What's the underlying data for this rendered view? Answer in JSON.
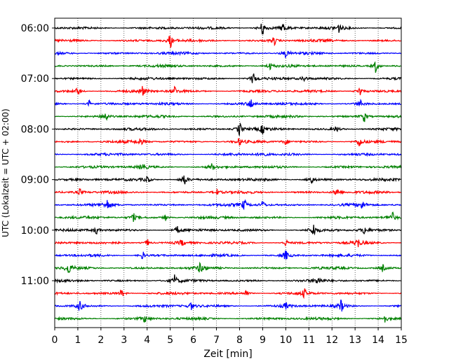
{
  "chart_data": {
    "type": "line",
    "title": "",
    "xlabel": "Zeit  [min]",
    "ylabel": "UTC (Lokalzeit = UTC + 02:00)",
    "xlim": [
      0,
      15
    ],
    "x_ticks": [
      "0",
      "1",
      "2",
      "3",
      "4",
      "5",
      "6",
      "7",
      "8",
      "9",
      "10",
      "11",
      "12",
      "13",
      "14",
      "15"
    ],
    "y_tick_labels": [
      "06:00",
      "07:00",
      "08:00",
      "09:00",
      "10:00",
      "11:00"
    ],
    "grid": "vertical-dotted",
    "trace_interval_minutes": 15,
    "series": [
      {
        "start": "06:00",
        "color": "#000000",
        "events": [
          [
            9.0,
            3.0
          ],
          [
            9.9,
            2.0
          ],
          [
            12.3,
            1.5
          ]
        ]
      },
      {
        "start": "06:15",
        "color": "#ff0000",
        "events": [
          [
            5.0,
            2.5
          ],
          [
            9.5,
            1.5
          ]
        ]
      },
      {
        "start": "06:30",
        "color": "#0000ff",
        "events": [
          [
            10.0,
            1.5
          ]
        ]
      },
      {
        "start": "06:45",
        "color": "#008000",
        "events": [
          [
            9.3,
            1.5
          ],
          [
            13.9,
            2.5
          ]
        ]
      },
      {
        "start": "07:00",
        "color": "#000000",
        "events": [
          [
            8.6,
            2.5
          ],
          [
            10.8,
            1.2
          ]
        ]
      },
      {
        "start": "07:15",
        "color": "#ff0000",
        "events": [
          [
            1.0,
            1.5
          ],
          [
            3.8,
            2.0
          ],
          [
            5.2,
            1.5
          ],
          [
            13.2,
            2.0
          ]
        ]
      },
      {
        "start": "07:30",
        "color": "#0000ff",
        "events": [
          [
            1.5,
            1.2
          ],
          [
            8.5,
            2.0
          ],
          [
            13.2,
            1.5
          ]
        ]
      },
      {
        "start": "07:45",
        "color": "#008000",
        "events": [
          [
            2.2,
            2.0
          ],
          [
            13.4,
            2.0
          ]
        ]
      },
      {
        "start": "08:00",
        "color": "#000000",
        "events": [
          [
            8.0,
            2.5
          ],
          [
            9.0,
            1.5
          ],
          [
            12.2,
            1.2
          ]
        ]
      },
      {
        "start": "08:15",
        "color": "#ff0000",
        "events": [
          [
            3.7,
            1.5
          ],
          [
            8.0,
            1.2
          ],
          [
            10.0,
            1.2
          ],
          [
            13.2,
            2.0
          ]
        ]
      },
      {
        "start": "08:30",
        "color": "#0000ff",
        "events": [
          [
            9.0,
            1.5
          ]
        ]
      },
      {
        "start": "08:45",
        "color": "#008000",
        "events": [
          [
            3.8,
            1.5
          ],
          [
            6.8,
            1.2
          ]
        ]
      },
      {
        "start": "09:00",
        "color": "#000000",
        "events": [
          [
            4.0,
            1.5
          ],
          [
            5.6,
            2.5
          ],
          [
            11.1,
            2.0
          ]
        ]
      },
      {
        "start": "09:15",
        "color": "#ff0000",
        "events": [
          [
            1.1,
            1.5
          ],
          [
            7.0,
            1.2
          ],
          [
            12.2,
            2.0
          ]
        ]
      },
      {
        "start": "09:30",
        "color": "#0000ff",
        "events": [
          [
            2.3,
            2.0
          ],
          [
            8.2,
            2.0
          ],
          [
            9.0,
            1.5
          ],
          [
            13.3,
            1.5
          ]
        ]
      },
      {
        "start": "09:45",
        "color": "#008000",
        "events": [
          [
            3.4,
            1.5
          ],
          [
            4.8,
            1.2
          ],
          [
            14.6,
            2.0
          ]
        ]
      },
      {
        "start": "10:00",
        "color": "#000000",
        "events": [
          [
            1.8,
            1.5
          ],
          [
            5.3,
            1.5
          ],
          [
            11.2,
            2.5
          ],
          [
            13.4,
            1.5
          ]
        ]
      },
      {
        "start": "10:15",
        "color": "#ff0000",
        "events": [
          [
            4.0,
            1.5
          ],
          [
            5.5,
            1.2
          ],
          [
            10.0,
            1.2
          ],
          [
            13.1,
            2.0
          ]
        ]
      },
      {
        "start": "10:30",
        "color": "#0000ff",
        "events": [
          [
            3.8,
            1.5
          ],
          [
            10.0,
            2.0
          ]
        ]
      },
      {
        "start": "10:45",
        "color": "#008000",
        "events": [
          [
            0.6,
            2.0
          ],
          [
            6.3,
            2.0
          ],
          [
            14.2,
            1.2
          ]
        ]
      },
      {
        "start": "11:00",
        "color": "#000000",
        "events": [
          [
            5.2,
            2.0
          ],
          [
            11.4,
            1.5
          ]
        ]
      },
      {
        "start": "11:15",
        "color": "#ff0000",
        "events": [
          [
            2.9,
            1.5
          ],
          [
            8.3,
            1.2
          ],
          [
            10.8,
            1.5
          ]
        ]
      },
      {
        "start": "11:30",
        "color": "#0000ff",
        "events": [
          [
            1.1,
            2.0
          ],
          [
            5.9,
            1.5
          ],
          [
            10.0,
            1.2
          ],
          [
            12.4,
            2.0
          ]
        ]
      },
      {
        "start": "11:45",
        "color": "#008000",
        "events": [
          [
            3.9,
            1.2
          ],
          [
            14.3,
            1.5
          ]
        ]
      }
    ]
  }
}
